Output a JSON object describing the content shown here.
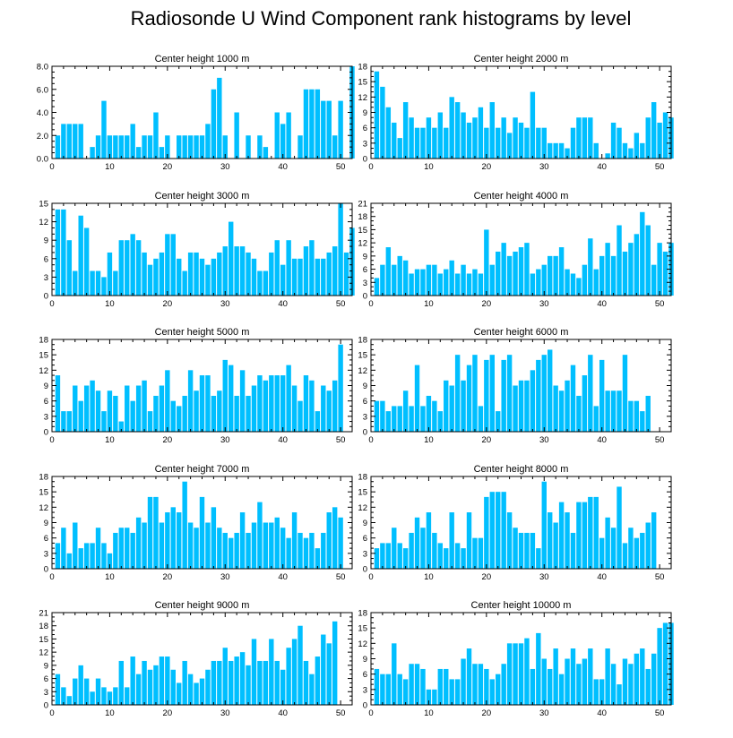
{
  "figure_title": "Radiosonde U Wind Component rank histograms by level",
  "chart_data": [
    {
      "type": "bar",
      "title": "Center height 1000 m",
      "xlim": [
        0,
        52
      ],
      "xticks": [
        0,
        10,
        20,
        30,
        40,
        50
      ],
      "ylim": [
        0,
        8
      ],
      "yticks": [
        0,
        2,
        4,
        6,
        8
      ],
      "ytick_labels": [
        "0.0",
        "2.0",
        "4.0",
        "6.0",
        "8.0"
      ],
      "values": [
        2,
        3,
        3,
        3,
        3,
        0,
        1,
        2,
        5,
        2,
        2,
        2,
        2,
        3,
        1,
        2,
        2,
        4,
        1,
        2,
        0,
        2,
        2,
        2,
        2,
        2,
        3,
        6,
        7,
        2,
        0,
        4,
        0,
        2,
        0,
        2,
        1,
        0,
        4,
        3,
        4,
        0,
        2,
        6,
        6,
        6,
        5,
        5,
        2,
        5,
        0,
        8
      ]
    },
    {
      "type": "bar",
      "title": "Center height 2000 m",
      "xlim": [
        0,
        52
      ],
      "xticks": [
        0,
        10,
        20,
        30,
        40,
        50
      ],
      "ylim": [
        0,
        18
      ],
      "yticks": [
        0,
        3,
        6,
        9,
        12,
        15,
        18
      ],
      "ytick_labels": [
        "0",
        "3",
        "6",
        "9",
        "12",
        "15",
        "18"
      ],
      "values": [
        17,
        14,
        10,
        7,
        4,
        11,
        8,
        6,
        6,
        8,
        6,
        9,
        6,
        12,
        11,
        9,
        7,
        8,
        10,
        6,
        11,
        6,
        8,
        5,
        8,
        7,
        6,
        13,
        6,
        6,
        3,
        3,
        3,
        2,
        6,
        8,
        8,
        8,
        3,
        0,
        1,
        7,
        6,
        3,
        2,
        5,
        3,
        8,
        11,
        7,
        9,
        8
      ]
    },
    {
      "type": "bar",
      "title": "Center height 3000 m",
      "xlim": [
        0,
        52
      ],
      "xticks": [
        0,
        10,
        20,
        30,
        40,
        50
      ],
      "ylim": [
        0,
        15
      ],
      "yticks": [
        0,
        3,
        6,
        9,
        12,
        15
      ],
      "ytick_labels": [
        "0",
        "3",
        "6",
        "9",
        "12",
        "15"
      ],
      "values": [
        14,
        14,
        9,
        4,
        13,
        11,
        4,
        4,
        3,
        7,
        4,
        9,
        9,
        10,
        9,
        7,
        5,
        6,
        7,
        10,
        10,
        6,
        4,
        7,
        7,
        6,
        5,
        6,
        7,
        8,
        12,
        8,
        8,
        7,
        6,
        4,
        4,
        7,
        9,
        5,
        9,
        6,
        6,
        8,
        9,
        6,
        6,
        7,
        8,
        15,
        7,
        11
      ]
    },
    {
      "type": "bar",
      "title": "Center height 4000 m",
      "xlim": [
        0,
        52
      ],
      "xticks": [
        0,
        10,
        20,
        30,
        40,
        50
      ],
      "ylim": [
        0,
        21
      ],
      "yticks": [
        0,
        3,
        6,
        9,
        12,
        15,
        18,
        21
      ],
      "ytick_labels": [
        "0",
        "3",
        "6",
        "9",
        "12",
        "15",
        "18",
        "21"
      ],
      "values": [
        4,
        7,
        11,
        7,
        9,
        8,
        5,
        6,
        6,
        7,
        7,
        5,
        6,
        8,
        5,
        7,
        5,
        6,
        5,
        15,
        7,
        10,
        12,
        9,
        10,
        11,
        12,
        5,
        6,
        7,
        9,
        9,
        11,
        6,
        5,
        4,
        7,
        13,
        6,
        9,
        12,
        9,
        16,
        10,
        12,
        14,
        19,
        16,
        7,
        12,
        10,
        12
      ]
    },
    {
      "type": "bar",
      "title": "Center height 5000 m",
      "xlim": [
        0,
        52
      ],
      "xticks": [
        0,
        10,
        20,
        30,
        40,
        50
      ],
      "ylim": [
        0,
        18
      ],
      "yticks": [
        0,
        3,
        6,
        9,
        12,
        15,
        18
      ],
      "ytick_labels": [
        "0",
        "3",
        "6",
        "9",
        "12",
        "15",
        "18"
      ],
      "values": [
        11,
        4,
        4,
        9,
        6,
        9,
        10,
        8,
        4,
        8,
        7,
        2,
        9,
        6,
        9,
        10,
        4,
        7,
        9,
        12,
        6,
        5,
        7,
        12,
        8,
        11,
        11,
        7,
        8,
        14,
        13,
        7,
        12,
        7,
        9,
        11,
        10,
        11,
        11,
        11,
        13,
        9,
        6,
        11,
        10,
        4,
        9,
        8,
        10,
        17
      ]
    },
    {
      "type": "bar",
      "title": "Center height 6000 m",
      "xlim": [
        0,
        52
      ],
      "xticks": [
        0,
        10,
        20,
        30,
        40,
        50
      ],
      "ylim": [
        0,
        18
      ],
      "yticks": [
        0,
        3,
        6,
        9,
        12,
        15,
        18
      ],
      "ytick_labels": [
        "0",
        "3",
        "6",
        "9",
        "12",
        "15",
        "18"
      ],
      "values": [
        6,
        6,
        4,
        5,
        5,
        8,
        5,
        13,
        5,
        7,
        6,
        4,
        10,
        9,
        15,
        10,
        13,
        15,
        5,
        14,
        15,
        4,
        14,
        15,
        9,
        10,
        10,
        12,
        14,
        15,
        16,
        9,
        8,
        10,
        13,
        7,
        11,
        15,
        5,
        14,
        8,
        8,
        8,
        15,
        6,
        6,
        4,
        7
      ]
    },
    {
      "type": "bar",
      "title": "Center height 7000 m",
      "xlim": [
        0,
        52
      ],
      "xticks": [
        0,
        10,
        20,
        30,
        40,
        50
      ],
      "ylim": [
        0,
        18
      ],
      "yticks": [
        0,
        3,
        6,
        9,
        12,
        15,
        18
      ],
      "ytick_labels": [
        "0",
        "3",
        "6",
        "9",
        "12",
        "15",
        "18"
      ],
      "values": [
        5,
        8,
        3,
        9,
        4,
        5,
        5,
        8,
        5,
        3,
        7,
        8,
        8,
        7,
        10,
        9,
        14,
        14,
        9,
        11,
        12,
        11,
        17,
        9,
        8,
        14,
        9,
        12,
        8,
        7,
        6,
        7,
        11,
        7,
        9,
        13,
        9,
        9,
        10,
        8,
        6,
        11,
        7,
        6,
        7,
        4,
        7,
        11,
        12,
        10
      ]
    },
    {
      "type": "bar",
      "title": "Center height 8000 m",
      "xlim": [
        0,
        52
      ],
      "xticks": [
        0,
        10,
        20,
        30,
        40,
        50
      ],
      "ylim": [
        0,
        18
      ],
      "yticks": [
        0,
        3,
        6,
        9,
        12,
        15,
        18
      ],
      "ytick_labels": [
        "0",
        "3",
        "6",
        "9",
        "12",
        "15",
        "18"
      ],
      "values": [
        4,
        5,
        5,
        8,
        5,
        4,
        7,
        10,
        8,
        11,
        7,
        5,
        4,
        11,
        5,
        4,
        11,
        6,
        6,
        14,
        15,
        15,
        15,
        11,
        8,
        7,
        7,
        7,
        4,
        17,
        11,
        9,
        13,
        11,
        7,
        13,
        13,
        14,
        14,
        6,
        10,
        8,
        16,
        5,
        8,
        6,
        7,
        9,
        11
      ]
    },
    {
      "type": "bar",
      "title": "Center height 9000 m",
      "xlim": [
        0,
        52
      ],
      "xticks": [
        0,
        10,
        20,
        30,
        40,
        50
      ],
      "ylim": [
        0,
        21
      ],
      "yticks": [
        0,
        3,
        6,
        9,
        12,
        15,
        18,
        21
      ],
      "ytick_labels": [
        "0",
        "3",
        "6",
        "9",
        "12",
        "15",
        "18",
        "21"
      ],
      "values": [
        7,
        4,
        2,
        6,
        9,
        6,
        3,
        6,
        4,
        3,
        4,
        10,
        4,
        11,
        7,
        10,
        8,
        9,
        11,
        11,
        8,
        5,
        10,
        7,
        5,
        6,
        8,
        10,
        10,
        13,
        10,
        11,
        12,
        9,
        15,
        10,
        10,
        15,
        10,
        8,
        13,
        15,
        18,
        10,
        7,
        11,
        16,
        14,
        19
      ]
    },
    {
      "type": "bar",
      "title": "Center height 10000 m",
      "xlim": [
        0,
        52
      ],
      "xticks": [
        0,
        10,
        20,
        30,
        40,
        50
      ],
      "ylim": [
        0,
        18
      ],
      "yticks": [
        0,
        3,
        6,
        9,
        12,
        15,
        18
      ],
      "ytick_labels": [
        "0",
        "3",
        "6",
        "9",
        "12",
        "15",
        "18"
      ],
      "values": [
        7,
        6,
        6,
        12,
        6,
        5,
        8,
        8,
        7,
        3,
        3,
        7,
        7,
        5,
        5,
        9,
        11,
        8,
        8,
        7,
        5,
        6,
        8,
        12,
        12,
        12,
        13,
        7,
        14,
        9,
        7,
        11,
        6,
        9,
        11,
        8,
        9,
        11,
        5,
        5,
        11,
        8,
        4,
        9,
        8,
        10,
        11,
        7,
        10,
        15,
        16,
        16
      ]
    }
  ]
}
